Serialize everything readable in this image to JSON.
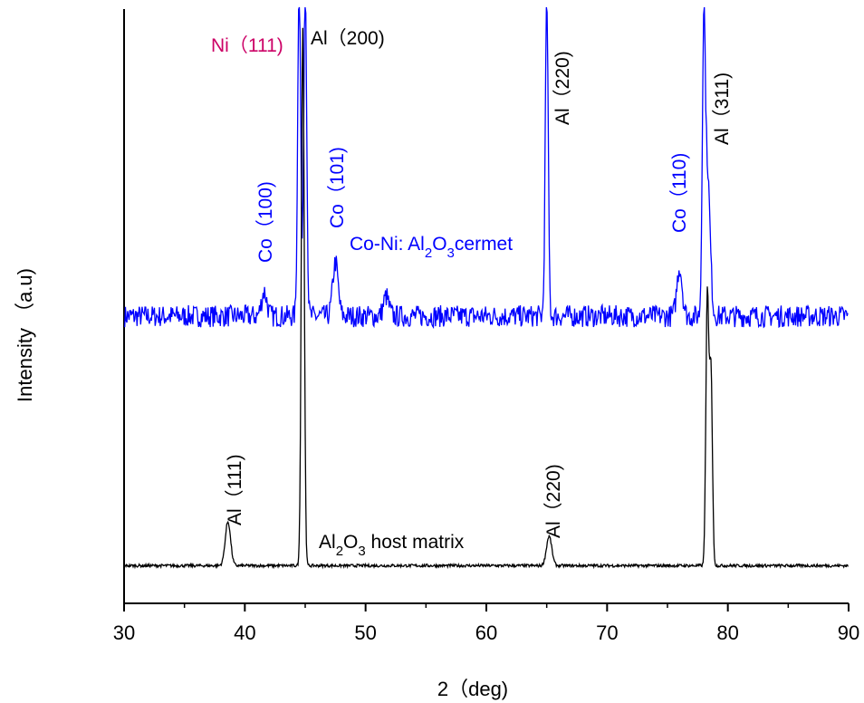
{
  "chart_data": {
    "type": "line",
    "xlabel": "2（deg)",
    "ylabel": "Intensity （a.u)",
    "xlim": [
      30,
      90
    ],
    "x_ticks": [
      "30",
      "40",
      "50",
      "60",
      "70",
      "80",
      "90"
    ],
    "y_ticks_shown": false,
    "grid": false,
    "series": [
      {
        "name": "Co-Ni: Al2O3cermet",
        "color": "#0000ff",
        "baseline": 0.55,
        "peaks": [
          {
            "x": 41.6,
            "height": 0.05
          },
          {
            "x": 44.5,
            "height": 0.7
          },
          {
            "x": 45.0,
            "height": 0.7
          },
          {
            "x": 47.5,
            "height": 0.11
          },
          {
            "x": 51.7,
            "height": 0.04
          },
          {
            "x": 65.0,
            "height": 0.65
          },
          {
            "x": 76.0,
            "height": 0.1
          },
          {
            "x": 78.0,
            "height": 0.52
          },
          {
            "x": 78.3,
            "height": 0.3
          }
        ]
      },
      {
        "name": "Al2O3 host matrix",
        "color": "#000000",
        "baseline": 0.04,
        "peaks": [
          {
            "x": 38.6,
            "height": 0.09
          },
          {
            "x": 44.8,
            "height": 1.1
          },
          {
            "x": 65.2,
            "height": 0.06
          },
          {
            "x": 78.3,
            "height": 0.55
          },
          {
            "x": 78.6,
            "height": 0.4
          }
        ]
      }
    ],
    "annotations": [
      {
        "text": "Ni（111)",
        "color": "#cc0066",
        "orientation": "horizontal"
      },
      {
        "text": "Al（200)",
        "color": "#000000",
        "orientation": "horizontal"
      },
      {
        "text": "Co（100)",
        "color": "#0000ff",
        "orientation": "vertical"
      },
      {
        "text": "Co（101)",
        "color": "#0000ff",
        "orientation": "vertical"
      },
      {
        "text": "Al（220)",
        "color": "#000000",
        "orientation": "vertical"
      },
      {
        "text": "Co（110)",
        "color": "#0000ff",
        "orientation": "vertical"
      },
      {
        "text": "Al（311)",
        "color": "#000000",
        "orientation": "vertical"
      },
      {
        "text": "Al（111)",
        "color": "#000000",
        "orientation": "vertical"
      },
      {
        "text": "Al（220)",
        "color": "#000000",
        "orientation": "vertical"
      }
    ],
    "series_labels": [
      {
        "parts": [
          "Co-Ni: Al",
          "2",
          "O",
          "3",
          "cermet"
        ],
        "color": "#0000ff"
      },
      {
        "parts": [
          "Al",
          "2",
          "O",
          "3",
          " host matrix"
        ],
        "color": "#000000"
      }
    ]
  }
}
